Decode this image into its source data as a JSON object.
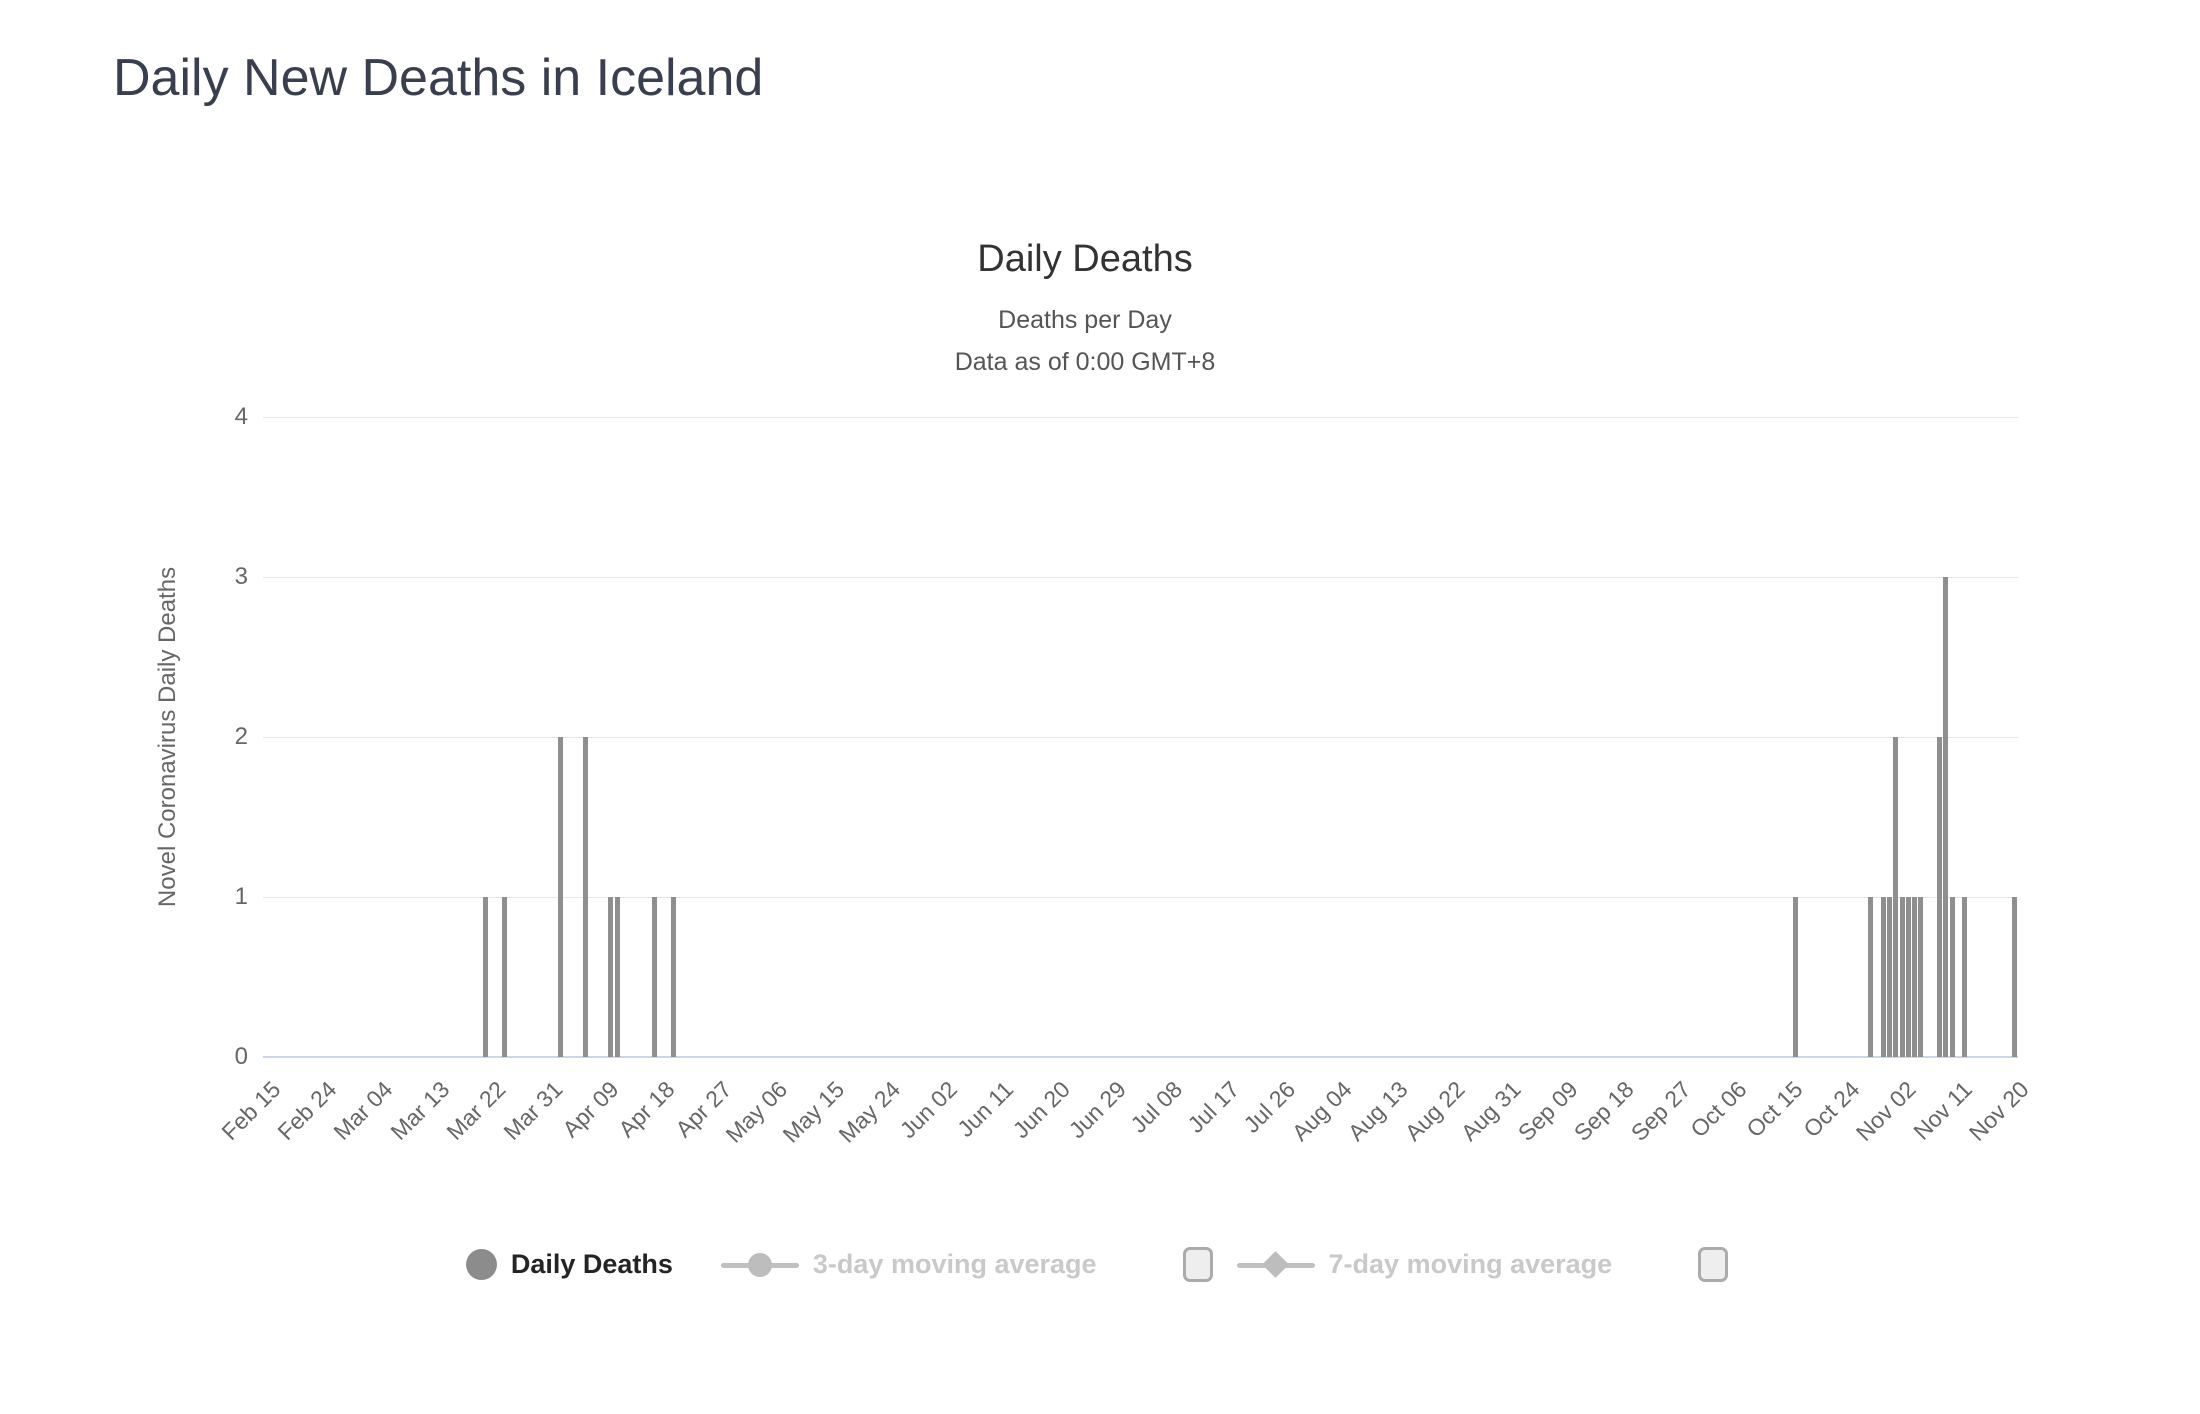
{
  "page_title": "Daily New Deaths in Iceland",
  "chart_data": {
    "type": "bar",
    "title": "Daily Deaths",
    "subtitle1": "Deaths per Day",
    "subtitle2": "Data as of 0:00 GMT+8",
    "ylabel": "Novel Coronavirus Daily Deaths",
    "ylim": [
      0,
      4
    ],
    "yticks": [
      0,
      1,
      2,
      3,
      4
    ],
    "grid": true,
    "legend_position": "bottom",
    "tick_interval_days": 9,
    "total_days": 280,
    "xtick_labels": [
      "Feb 15",
      "Feb 24",
      "Mar 04",
      "Mar 13",
      "Mar 22",
      "Mar 31",
      "Apr 09",
      "Apr 18",
      "Apr 27",
      "May 06",
      "May 15",
      "May 24",
      "Jun 02",
      "Jun 11",
      "Jun 20",
      "Jun 29",
      "Jul 08",
      "Jul 17",
      "Jul 26",
      "Aug 04",
      "Aug 13",
      "Aug 22",
      "Aug 31",
      "Sep 09",
      "Sep 18",
      "Sep 27",
      "Oct 06",
      "Oct 15",
      "Oct 24",
      "Nov 02",
      "Nov 11",
      "Nov 20"
    ],
    "series_name": "Daily Deaths",
    "points": [
      {
        "date": "Mar 21",
        "day": 35,
        "value": 1
      },
      {
        "date": "Mar 24",
        "day": 38,
        "value": 1
      },
      {
        "date": "Apr 02",
        "day": 47,
        "value": 2
      },
      {
        "date": "Apr 06",
        "day": 51,
        "value": 2
      },
      {
        "date": "Apr 10",
        "day": 55,
        "value": 1
      },
      {
        "date": "Apr 11",
        "day": 56,
        "value": 1
      },
      {
        "date": "Apr 17",
        "day": 62,
        "value": 1
      },
      {
        "date": "Apr 20",
        "day": 65,
        "value": 1
      },
      {
        "date": "Oct 16",
        "day": 244,
        "value": 1
      },
      {
        "date": "Oct 28",
        "day": 256,
        "value": 1
      },
      {
        "date": "Oct 30",
        "day": 258,
        "value": 1
      },
      {
        "date": "Oct 31",
        "day": 259,
        "value": 1
      },
      {
        "date": "Nov 01",
        "day": 260,
        "value": 2
      },
      {
        "date": "Nov 02",
        "day": 261,
        "value": 1
      },
      {
        "date": "Nov 03",
        "day": 262,
        "value": 1
      },
      {
        "date": "Nov 04",
        "day": 263,
        "value": 1
      },
      {
        "date": "Nov 05",
        "day": 264,
        "value": 1
      },
      {
        "date": "Nov 08",
        "day": 267,
        "value": 2
      },
      {
        "date": "Nov 09",
        "day": 268,
        "value": 3
      },
      {
        "date": "Nov 10",
        "day": 269,
        "value": 1
      },
      {
        "date": "Nov 12",
        "day": 271,
        "value": 1
      },
      {
        "date": "Nov 20",
        "day": 279,
        "value": 1
      }
    ],
    "colors": {
      "bar": "#8f8f8f",
      "grid": "#e6e6e6",
      "axis_line": "#ccd6eb",
      "axis_text": "#666666",
      "title_text": "#333333",
      "subtitle_text": "#555555",
      "page_title_text": "#3a3f4f"
    }
  },
  "legend": {
    "items": [
      {
        "label": "Daily Deaths",
        "marker": "circle",
        "active": true,
        "checkbox": false
      },
      {
        "label": "3-day moving average",
        "marker": "line-circle",
        "active": false,
        "checkbox": true
      },
      {
        "label": "7-day moving average",
        "marker": "line-diamond",
        "active": false,
        "checkbox": true
      }
    ]
  }
}
